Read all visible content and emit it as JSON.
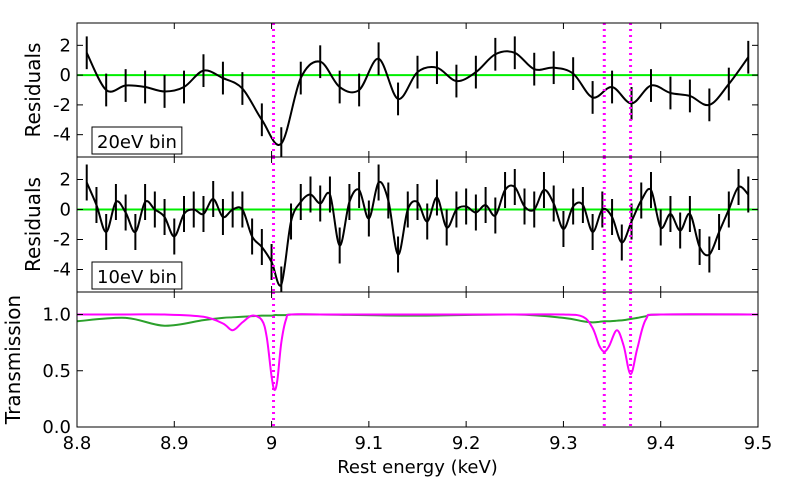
{
  "chart_data": [
    {
      "type": "errorbar",
      "ylabel": "Residuals",
      "annotation": "20eV bin",
      "xlim": [
        8.8,
        9.5
      ],
      "xticks": [
        8.8,
        8.9,
        9,
        9.1,
        9.2,
        9.3,
        9.4,
        9.5
      ],
      "ylim": [
        -5.5,
        3.5
      ],
      "yticks": [
        -4,
        -2,
        0,
        2
      ],
      "hline": 0,
      "hline_color": "#00ee00",
      "vlines": [
        9.002,
        9.342,
        9.369
      ],
      "vline_color": "#ff00ff",
      "color": "#000000",
      "error": 1.1,
      "x": [
        8.81,
        8.83,
        8.85,
        8.87,
        8.89,
        8.91,
        8.93,
        8.95,
        8.97,
        8.99,
        9.01,
        9.03,
        9.05,
        9.07,
        9.09,
        9.11,
        9.13,
        9.15,
        9.17,
        9.19,
        9.21,
        9.23,
        9.25,
        9.27,
        9.29,
        9.31,
        9.33,
        9.35,
        9.37,
        9.39,
        9.41,
        9.43,
        9.45,
        9.47,
        9.49
      ],
      "values": [
        1.5,
        -1.0,
        -0.7,
        -0.8,
        -1.1,
        -0.8,
        0.3,
        -0.2,
        -0.9,
        -3.0,
        -4.6,
        -0.2,
        0.9,
        -0.8,
        -1.0,
        1.1,
        -1.6,
        0.2,
        0.5,
        -0.4,
        0.2,
        1.4,
        1.5,
        0.4,
        0.5,
        0.1,
        -1.5,
        -0.8,
        -1.9,
        -0.7,
        -1.2,
        -1.4,
        -2.0,
        -0.6,
        1.2
      ]
    },
    {
      "type": "errorbar",
      "ylabel": "Residuals",
      "annotation": "10eV bin",
      "xlim": [
        8.8,
        9.5
      ],
      "xticks": [
        8.8,
        8.9,
        9,
        9.1,
        9.2,
        9.3,
        9.4,
        9.5
      ],
      "ylim": [
        -5.5,
        3.5
      ],
      "yticks": [
        -4,
        -2,
        0,
        2
      ],
      "hline": 0,
      "hline_color": "#00ee00",
      "vlines": [
        9.002,
        9.342,
        9.369
      ],
      "vline_color": "#ff00ff",
      "color": "#000000",
      "error": 1.2,
      "x": [
        8.81,
        8.82,
        8.83,
        8.84,
        8.85,
        8.86,
        8.87,
        8.88,
        8.89,
        8.9,
        8.91,
        8.92,
        8.93,
        8.94,
        8.95,
        8.96,
        8.97,
        8.98,
        8.99,
        9.0,
        9.01,
        9.02,
        9.03,
        9.04,
        9.05,
        9.06,
        9.07,
        9.08,
        9.09,
        9.1,
        9.11,
        9.12,
        9.13,
        9.14,
        9.15,
        9.16,
        9.17,
        9.18,
        9.19,
        9.2,
        9.21,
        9.22,
        9.23,
        9.24,
        9.25,
        9.26,
        9.27,
        9.28,
        9.29,
        9.3,
        9.31,
        9.32,
        9.33,
        9.34,
        9.35,
        9.36,
        9.37,
        9.38,
        9.39,
        9.4,
        9.41,
        9.42,
        9.43,
        9.44,
        9.45,
        9.46,
        9.47,
        9.48,
        9.49
      ],
      "values": [
        1.8,
        0.3,
        -1.5,
        0.5,
        -0.2,
        -1.5,
        0.5,
        0,
        -0.5,
        -1.8,
        -0.3,
        0,
        -0.3,
        0.7,
        -0.5,
        0,
        0,
        -1.8,
        -2.5,
        -3.5,
        -5.0,
        -0.8,
        0.5,
        1.0,
        0.4,
        1.0,
        -2.4,
        0.5,
        1.3,
        -0.6,
        1.8,
        0.6,
        -3.0,
        0,
        0.5,
        -0.8,
        0.8,
        -1.2,
        0,
        0.2,
        -0.2,
        0.3,
        -0.4,
        1.3,
        1.5,
        0.2,
        0,
        1.3,
        0.4,
        -1.3,
        0.2,
        0.3,
        -1.5,
        0,
        -0.5,
        -2.2,
        -0.8,
        0.6,
        1.3,
        -1.2,
        -0.3,
        -1.4,
        -0.3,
        -2.5,
        -3.0,
        -1.5,
        0,
        1.5,
        1.0
      ]
    },
    {
      "type": "line",
      "ylabel": "Transmission",
      "xlabel": "Rest energy (keV)",
      "xlim": [
        8.8,
        9.5
      ],
      "xticks": [
        8.8,
        8.9,
        9,
        9.1,
        9.2,
        9.3,
        9.4,
        9.5
      ],
      "ylim": [
        0,
        1.2
      ],
      "yticks": [
        {
          "value": 0,
          "label": "0.0"
        },
        0.5,
        {
          "value": 1,
          "label": "1.0"
        }
      ],
      "vlines": [
        9.002,
        9.342,
        9.369
      ],
      "vline_color": "#ff00ff",
      "x": [
        8.8,
        8.85,
        8.89,
        8.93,
        8.95,
        8.96,
        8.97,
        8.98,
        8.99,
        8.995,
        9.0,
        9.003,
        9.006,
        9.01,
        9.015,
        9.02,
        9.05,
        9.15,
        9.25,
        9.3,
        9.32,
        9.33,
        9.337,
        9.342,
        9.347,
        9.355,
        9.362,
        9.369,
        9.376,
        9.385,
        9.4,
        9.5
      ],
      "series": [
        {
          "color": "#2ca02c",
          "values": [
            0.94,
            0.97,
            0.9,
            0.95,
            0.97,
            0.975,
            0.98,
            0.985,
            0.99,
            0.99,
            0.99,
            0.995,
            0.995,
            0.995,
            0.995,
            1,
            1,
            0.99,
            1,
            0.97,
            0.94,
            0.93,
            0.935,
            0.94,
            0.94,
            0.945,
            0.95,
            0.96,
            0.97,
            0.985,
            1,
            1
          ]
        },
        {
          "color": "#ff00ff",
          "values": [
            1,
            1,
            1,
            0.98,
            0.92,
            0.86,
            0.93,
            0.99,
            0.95,
            0.8,
            0.45,
            0.33,
            0.42,
            0.75,
            0.96,
            1,
            1,
            1,
            1,
            1,
            0.98,
            0.88,
            0.72,
            0.67,
            0.72,
            0.86,
            0.72,
            0.47,
            0.7,
            0.96,
            1,
            1
          ]
        }
      ]
    }
  ]
}
